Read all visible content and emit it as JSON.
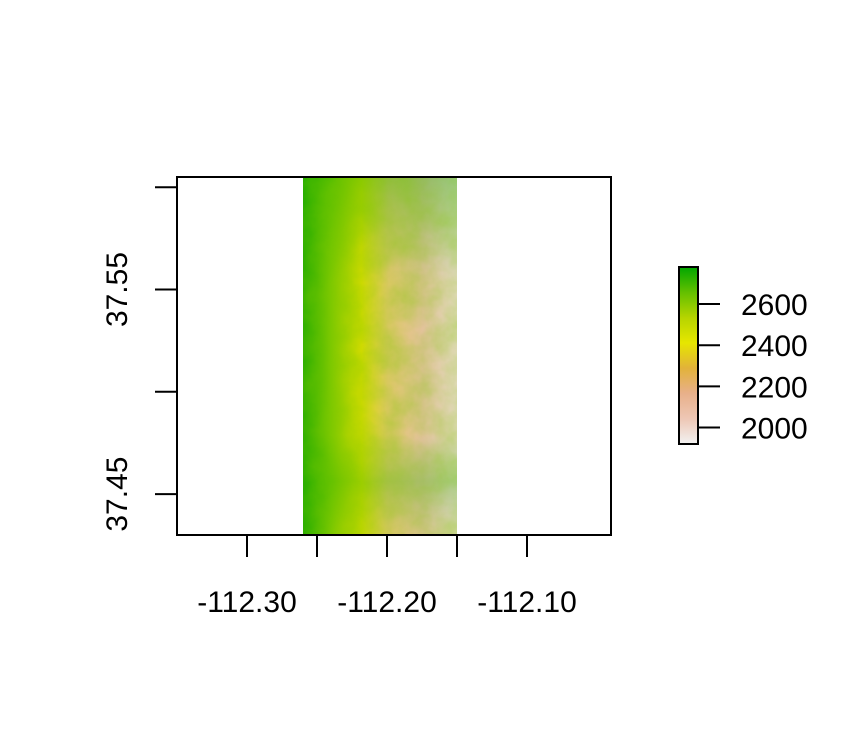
{
  "chart_data": {
    "type": "heatmap",
    "title": "",
    "xlabel": "",
    "ylabel": "",
    "xlim": [
      -112.35,
      -112.04
    ],
    "ylim": [
      37.43,
      37.605
    ],
    "raster_extent": {
      "x": [
        -112.26,
        -112.15
      ],
      "y": [
        37.43,
        37.605
      ]
    },
    "x_ticks": [
      {
        "value": -112.3,
        "label": "-112.30"
      },
      {
        "value": -112.25,
        "label": ""
      },
      {
        "value": -112.2,
        "label": "-112.20"
      },
      {
        "value": -112.15,
        "label": ""
      },
      {
        "value": -112.1,
        "label": "-112.10"
      }
    ],
    "y_ticks": [
      {
        "value": 37.6,
        "label": ""
      },
      {
        "value": 37.55,
        "label": "37.55"
      },
      {
        "value": 37.5,
        "label": ""
      },
      {
        "value": 37.45,
        "label": "37.45"
      }
    ],
    "legend": {
      "placement": "right",
      "min": 1920,
      "max": 2780,
      "ticks": [
        {
          "value": 2600,
          "label": "2600"
        },
        {
          "value": 2400,
          "label": "2400"
        },
        {
          "value": 2200,
          "label": "2200"
        },
        {
          "value": 2000,
          "label": "2000"
        }
      ],
      "colors": [
        "#f2f2f2",
        "#eec7b5",
        "#e8b08a",
        "#e2b23a",
        "#e6e600",
        "#b6d400",
        "#63c000",
        "#00a600"
      ]
    },
    "grid": false
  }
}
